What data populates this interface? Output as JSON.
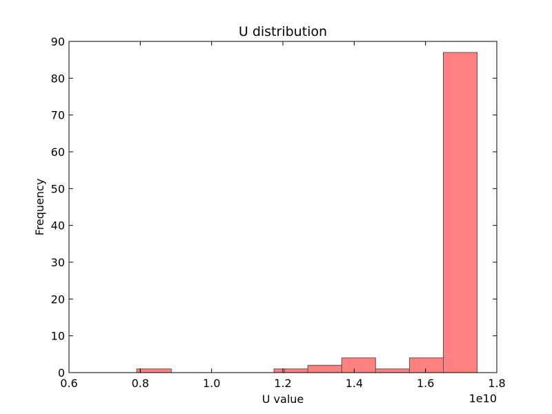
{
  "chart_data": {
    "type": "bar",
    "title": "U distribution",
    "xlabel": "U value",
    "ylabel": "Frequency",
    "x_multiplier_label": "1e10",
    "xlim": [
      0.6,
      1.8
    ],
    "ylim": [
      0,
      90
    ],
    "x_ticks": [
      "0.6",
      "0.8",
      "1.0",
      "1.2",
      "1.4",
      "1.6",
      "1.8"
    ],
    "y_ticks": [
      "0",
      "10",
      "20",
      "30",
      "40",
      "50",
      "60",
      "70",
      "80",
      "90"
    ],
    "bar_color": "#ff8080",
    "bar_edge_color": "#555555",
    "bins": [
      {
        "start": 0.79,
        "end": 0.8,
        "value": 1
      },
      {
        "start": 0.8,
        "end": 0.887,
        "value": 1
      },
      {
        "start": 1.175,
        "end": 1.205,
        "value": 1
      },
      {
        "start": 1.205,
        "end": 1.27,
        "value": 1
      },
      {
        "start": 1.27,
        "end": 1.365,
        "value": 2
      },
      {
        "start": 1.365,
        "end": 1.46,
        "value": 4
      },
      {
        "start": 1.46,
        "end": 1.555,
        "value": 1
      },
      {
        "start": 1.555,
        "end": 1.65,
        "value": 4
      },
      {
        "start": 1.65,
        "end": 1.745,
        "value": 87
      }
    ]
  }
}
